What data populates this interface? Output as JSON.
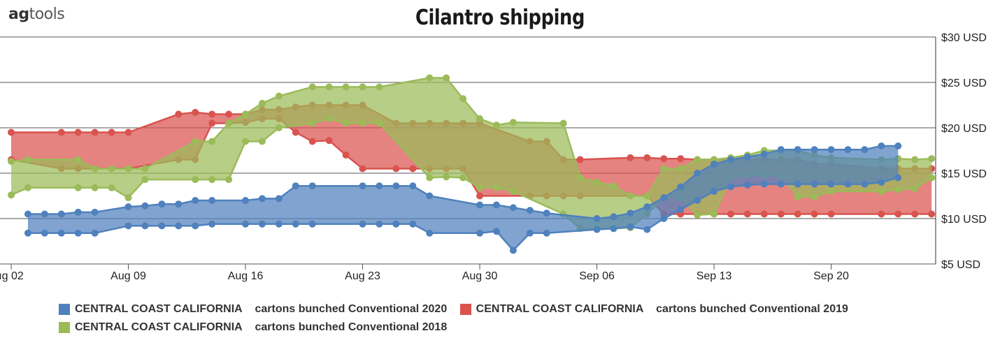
{
  "brand": {
    "part1": "ag",
    "part2": "tools"
  },
  "chart_data": {
    "type": "area",
    "title": "Cilantro shipping",
    "ylim": [
      5,
      30
    ],
    "y_ticks": [
      "$5 USD",
      "$10 USD",
      "$15 USD",
      "$20 USD",
      "$25 USD",
      "$30 USD"
    ],
    "y_tick_values": [
      5,
      10,
      15,
      20,
      25,
      30
    ],
    "x_ticks": [
      "ıg 02",
      "Aug 09",
      "Aug 16",
      "Aug 23",
      "Aug 30",
      "Sep 06",
      "Sep 13",
      "Sep 20"
    ],
    "x_tick_days": [
      0,
      7,
      14,
      21,
      28,
      35,
      42,
      49
    ],
    "x_range_days": [
      -0.5,
      55.5
    ],
    "series": [
      {
        "name": "CENTRAL COAST CALIFORNIA    cartons bunched Conventional 2019",
        "color": "#d9534f",
        "x": [
          0,
          3,
          4,
          5,
          6,
          7,
          10,
          11,
          12,
          13,
          14,
          15,
          16,
          17,
          18,
          19,
          20,
          21,
          23,
          24,
          25,
          26,
          27,
          28,
          31,
          32,
          33,
          34,
          37,
          38,
          39,
          40,
          41,
          42,
          43,
          44,
          45,
          46,
          47,
          48,
          49,
          52,
          53,
          54,
          55
        ],
        "high": [
          19.5,
          19.5,
          19.5,
          19.5,
          19.5,
          19.5,
          21.5,
          21.7,
          21.5,
          21.5,
          21.5,
          22.0,
          22.0,
          22.3,
          22.5,
          22.5,
          22.5,
          22.5,
          20.5,
          20.5,
          20.5,
          20.5,
          20.5,
          20.5,
          18.5,
          18.5,
          16.5,
          16.5,
          16.7,
          16.7,
          16.6,
          16.6,
          16.5,
          16.5,
          16.5,
          16.5,
          16.5,
          16.5,
          16.5,
          16.0,
          16.0,
          15.5,
          15.5,
          15.5,
          15.5
        ],
        "low": [
          16.5,
          15.5,
          15.5,
          15.5,
          15.5,
          15.5,
          16.5,
          16.5,
          20.5,
          20.5,
          20.6,
          21.0,
          21.0,
          19.5,
          18.5,
          18.6,
          17.0,
          15.5,
          15.5,
          15.5,
          15.5,
          15.5,
          15.5,
          12.5,
          12.5,
          12.5,
          12.5,
          12.5,
          12.5,
          12.5,
          10.5,
          10.5,
          10.5,
          10.5,
          10.5,
          10.5,
          10.5,
          10.5,
          10.5,
          10.5,
          10.5,
          10.5,
          10.5,
          10.5,
          10.5
        ]
      },
      {
        "name": "CENTRAL COAST CALIFORNIA    cartons bunched Conventional 2018",
        "color": "#9bbb59",
        "x": [
          0,
          1,
          4,
          5,
          6,
          7,
          8,
          11,
          12,
          13,
          14,
          15,
          16,
          18,
          19,
          20,
          21,
          22,
          25,
          26,
          27,
          28,
          29,
          30,
          33,
          34,
          35,
          36,
          37,
          38,
          39,
          40,
          41,
          42,
          43,
          44,
          45,
          46,
          47,
          48,
          49,
          52,
          53,
          54,
          55
        ],
        "high": [
          16.3,
          16.5,
          16.5,
          15.5,
          15.5,
          15.5,
          15.5,
          18.5,
          18.5,
          20.5,
          21.5,
          22.7,
          23.5,
          24.5,
          24.5,
          24.5,
          24.5,
          24.5,
          25.5,
          25.5,
          23.2,
          21.0,
          20.3,
          20.6,
          20.5,
          14.5,
          14.0,
          13.6,
          12.5,
          12.5,
          15.5,
          15.5,
          16.5,
          16.5,
          16.7,
          17.0,
          17.5,
          17.5,
          17.5,
          17.0,
          16.7,
          16.5,
          16.6,
          16.5,
          16.6
        ],
        "low": [
          12.6,
          13.4,
          13.4,
          13.4,
          13.4,
          12.3,
          14.3,
          14.3,
          14.3,
          14.3,
          18.5,
          18.5,
          20.0,
          20.5,
          21.0,
          20.5,
          20.5,
          20.5,
          14.5,
          14.6,
          14.5,
          13.4,
          13.4,
          13.0,
          10.5,
          8.9,
          8.9,
          8.9,
          9.0,
          10.5,
          12.3,
          12.3,
          10.4,
          10.5,
          14.5,
          14.8,
          14.8,
          14.7,
          12.4,
          12.4,
          13.0,
          13.0,
          13.2,
          13.3,
          14.5
        ]
      },
      {
        "name": "CENTRAL COAST CALIFORNIA    cartons bunched Conventional 2020",
        "color": "#4f81bd",
        "x": [
          1,
          2,
          3,
          4,
          5,
          7,
          8,
          9,
          10,
          11,
          12,
          14,
          15,
          16,
          17,
          18,
          21,
          22,
          23,
          24,
          25,
          28,
          29,
          30,
          31,
          32,
          35,
          36,
          37,
          38,
          39,
          40,
          41,
          42,
          43,
          44,
          45,
          46,
          47,
          48,
          49,
          50,
          51,
          52,
          53
        ],
        "high": [
          10.5,
          10.5,
          10.5,
          10.7,
          10.7,
          11.3,
          11.4,
          11.6,
          11.6,
          12.0,
          12.0,
          12.0,
          12.2,
          12.2,
          13.6,
          13.6,
          13.6,
          13.6,
          13.6,
          13.6,
          12.5,
          11.5,
          11.5,
          11.2,
          10.9,
          10.6,
          10.0,
          10.2,
          10.6,
          11.3,
          12.3,
          13.5,
          15.0,
          16.0,
          16.5,
          16.8,
          17.1,
          17.6,
          17.6,
          17.6,
          17.6,
          17.6,
          17.6,
          18.0,
          18.0
        ],
        "low": [
          8.4,
          8.4,
          8.4,
          8.4,
          8.4,
          9.2,
          9.2,
          9.2,
          9.2,
          9.2,
          9.4,
          9.4,
          9.4,
          9.4,
          9.4,
          9.4,
          9.4,
          9.4,
          9.4,
          9.4,
          8.4,
          8.4,
          8.6,
          6.5,
          8.4,
          8.4,
          8.8,
          8.9,
          9.1,
          8.8,
          10.0,
          11.0,
          12.0,
          13.0,
          13.5,
          13.7,
          13.8,
          13.8,
          13.8,
          13.8,
          13.8,
          13.8,
          13.8,
          14.0,
          14.5
        ]
      }
    ],
    "legend": [
      {
        "region": "CENTRAL COAST CALIFORNIA",
        "product": "cartons bunched Conventional 2020",
        "color": "#4f81bd"
      },
      {
        "region": "CENTRAL COAST CALIFORNIA",
        "product": "cartons bunched Conventional 2019",
        "color": "#d9534f"
      },
      {
        "region": "CENTRAL COAST CALIFORNIA",
        "product": "cartons bunched Conventional 2018",
        "color": "#9bbb59"
      }
    ],
    "legend_position": "bottom",
    "grid": true
  }
}
